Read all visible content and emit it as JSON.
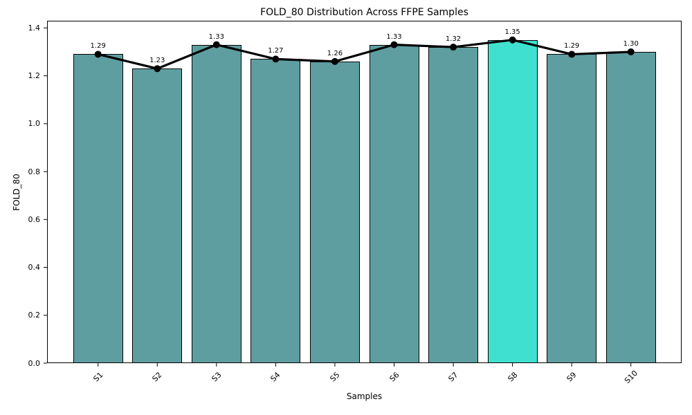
{
  "chart_data": {
    "type": "bar",
    "title": "FOLD_80 Distribution Across FFPE Samples",
    "xlabel": "Samples",
    "ylabel": "FOLD_80",
    "categories": [
      "S1",
      "S2",
      "S3",
      "S4",
      "S5",
      "S6",
      "S7",
      "S8",
      "S9",
      "S10"
    ],
    "values": [
      1.29,
      1.23,
      1.33,
      1.27,
      1.26,
      1.33,
      1.32,
      1.35,
      1.29,
      1.3
    ],
    "bar_value_labels": [
      "1.29",
      "1.23",
      "1.33",
      "1.27",
      "1.26",
      "1.33",
      "1.32",
      "1.35",
      "1.29",
      "1.30"
    ],
    "overlay_line": {
      "type": "line",
      "marker": "circle",
      "values": [
        1.29,
        1.23,
        1.33,
        1.27,
        1.26,
        1.33,
        1.32,
        1.35,
        1.29,
        1.3
      ]
    },
    "highlight_index": 7,
    "highlight_category": "S8",
    "yticks": [
      0.0,
      0.2,
      0.4,
      0.6,
      0.8,
      1.0,
      1.2,
      1.4
    ],
    "ytick_labels": [
      "0.0",
      "0.2",
      "0.4",
      "0.6",
      "0.8",
      "1.0",
      "1.2",
      "1.4"
    ],
    "ylim": [
      0,
      1.43
    ],
    "xtick_rotation": 45,
    "grid": false,
    "legend": "none",
    "bar_color": "#5F9EA0",
    "highlight_color": "#40E0D0",
    "edge_color": "#000000",
    "line_color": "#000000",
    "background_color": "#FFFFFF"
  }
}
